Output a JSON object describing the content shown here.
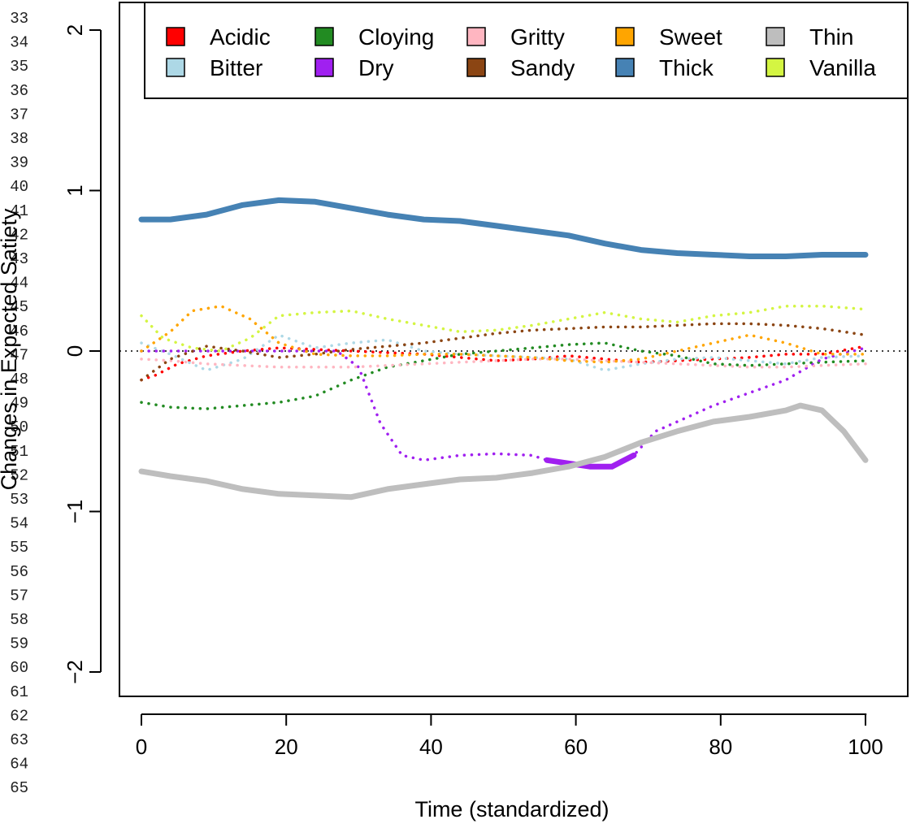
{
  "line_numbers": [
    "33",
    "34",
    "35",
    "36",
    "37",
    "38",
    "39",
    "40",
    "41",
    "42",
    "43",
    "44",
    "45",
    "46",
    "47",
    "48",
    "49",
    "50",
    "51",
    "52",
    "53",
    "54",
    "55",
    "56",
    "57",
    "58",
    "59",
    "60",
    "61",
    "62",
    "63",
    "64",
    "65"
  ],
  "chart_data": {
    "type": "line",
    "title": "",
    "xlabel": "Time (standardized)",
    "ylabel": "Changes in Expected Satiety",
    "xlim": [
      0,
      101
    ],
    "ylim": [
      -2.1,
      2.1
    ],
    "x_ticks": [
      "0",
      "20",
      "40",
      "60",
      "80",
      "100"
    ],
    "y_ticks": [
      "−2",
      "−1",
      "0",
      "1",
      "2"
    ],
    "reference_line": {
      "y": 0,
      "style": "dotted",
      "color": "#000000"
    },
    "legend": {
      "position": "top-right",
      "columns": 5
    },
    "series": [
      {
        "name": "Acidic",
        "color": "#ff0000",
        "style": "dotted",
        "x": [
          1,
          3,
          6,
          10,
          15,
          20,
          25,
          30,
          35,
          40,
          45,
          50,
          55,
          60,
          65,
          70,
          75,
          80,
          85,
          90,
          95,
          101
        ],
        "y": [
          -0.18,
          -0.15,
          -0.08,
          -0.03,
          0.0,
          0.02,
          0.01,
          0.0,
          -0.01,
          -0.02,
          -0.04,
          -0.06,
          -0.05,
          -0.03,
          -0.05,
          -0.07,
          -0.06,
          -0.05,
          -0.04,
          -0.02,
          -0.02,
          0.03
        ]
      },
      {
        "name": "Bitter",
        "color": "#add8e6",
        "style": "dotted",
        "x": [
          1,
          5,
          10,
          15,
          20,
          25,
          30,
          35,
          40,
          45,
          50,
          55,
          60,
          65,
          70,
          75,
          80,
          85,
          90,
          95,
          101
        ],
        "y": [
          0.05,
          -0.02,
          -0.12,
          -0.05,
          0.1,
          0.02,
          0.05,
          0.07,
          0.0,
          -0.02,
          -0.03,
          -0.04,
          -0.05,
          -0.12,
          -0.08,
          -0.05,
          -0.04,
          -0.06,
          -0.08,
          -0.04,
          -0.03
        ]
      },
      {
        "name": "Cloying",
        "color": "#228b22",
        "style": "dotted",
        "x": [
          1,
          5,
          10,
          15,
          20,
          25,
          30,
          35,
          40,
          45,
          50,
          55,
          60,
          65,
          70,
          75,
          80,
          85,
          90,
          95,
          101
        ],
        "y": [
          -0.32,
          -0.35,
          -0.36,
          -0.34,
          -0.32,
          -0.28,
          -0.18,
          -0.1,
          -0.06,
          -0.02,
          0.0,
          0.02,
          0.04,
          0.05,
          0.0,
          -0.03,
          -0.08,
          -0.09,
          -0.08,
          -0.07,
          -0.06
        ]
      },
      {
        "name": "Dry",
        "color": "#a020f0",
        "style": "dotted",
        "highlight": {
          "from": 57,
          "to": 69
        },
        "x": [
          1,
          10,
          20,
          28,
          31,
          34,
          37,
          40,
          45,
          50,
          55,
          57,
          60,
          63,
          66,
          69,
          72,
          76,
          80,
          85,
          90,
          95,
          101
        ],
        "y": [
          0.0,
          0.0,
          0.0,
          0.0,
          -0.1,
          -0.45,
          -0.65,
          -0.68,
          -0.65,
          -0.64,
          -0.65,
          -0.68,
          -0.7,
          -0.72,
          -0.72,
          -0.65,
          -0.5,
          -0.42,
          -0.34,
          -0.26,
          -0.18,
          -0.05,
          0.02
        ]
      },
      {
        "name": "Gritty",
        "color": "#ffb6c1",
        "style": "dotted",
        "x": [
          1,
          5,
          10,
          15,
          20,
          25,
          30,
          35,
          40,
          45,
          50,
          55,
          60,
          65,
          70,
          75,
          80,
          85,
          90,
          95,
          101
        ],
        "y": [
          -0.05,
          -0.06,
          -0.08,
          -0.09,
          -0.1,
          -0.1,
          -0.1,
          -0.09,
          -0.08,
          -0.07,
          -0.06,
          -0.05,
          -0.05,
          -0.06,
          -0.07,
          -0.08,
          -0.09,
          -0.1,
          -0.1,
          -0.09,
          -0.08
        ]
      },
      {
        "name": "Sandy",
        "color": "#8b4513",
        "style": "dotted",
        "x": [
          1,
          5,
          10,
          15,
          20,
          25,
          30,
          35,
          40,
          45,
          50,
          55,
          60,
          65,
          70,
          75,
          80,
          85,
          90,
          95,
          101
        ],
        "y": [
          -0.18,
          -0.05,
          0.03,
          0.0,
          -0.04,
          -0.02,
          0.01,
          0.03,
          0.05,
          0.08,
          0.11,
          0.13,
          0.14,
          0.15,
          0.15,
          0.16,
          0.17,
          0.17,
          0.16,
          0.14,
          0.1
        ]
      },
      {
        "name": "Sweet",
        "color": "#ffa500",
        "style": "dotted",
        "x": [
          1,
          5,
          8,
          12,
          16,
          20,
          25,
          30,
          35,
          40,
          45,
          50,
          55,
          60,
          65,
          70,
          75,
          80,
          85,
          90,
          95,
          101
        ],
        "y": [
          0.0,
          0.12,
          0.25,
          0.28,
          0.2,
          0.05,
          -0.02,
          -0.03,
          -0.03,
          -0.02,
          -0.02,
          -0.03,
          -0.04,
          -0.06,
          -0.07,
          -0.05,
          0.0,
          0.05,
          0.1,
          0.05,
          -0.02,
          -0.02
        ]
      },
      {
        "name": "Thick",
        "color": "#4682b4",
        "style": "solid",
        "x": [
          1,
          5,
          10,
          15,
          20,
          25,
          30,
          35,
          40,
          45,
          50,
          55,
          60,
          65,
          70,
          75,
          80,
          85,
          90,
          95,
          101
        ],
        "y": [
          0.82,
          0.82,
          0.85,
          0.91,
          0.94,
          0.93,
          0.89,
          0.85,
          0.82,
          0.81,
          0.78,
          0.75,
          0.72,
          0.67,
          0.63,
          0.61,
          0.6,
          0.59,
          0.59,
          0.6,
          0.6
        ]
      },
      {
        "name": "Thin",
        "color": "#bebebe",
        "style": "solid",
        "x": [
          1,
          5,
          10,
          15,
          20,
          25,
          30,
          35,
          40,
          45,
          50,
          55,
          60,
          65,
          70,
          75,
          80,
          85,
          90,
          92,
          95,
          98,
          101
        ],
        "y": [
          -0.75,
          -0.78,
          -0.81,
          -0.86,
          -0.89,
          -0.9,
          -0.91,
          -0.86,
          -0.83,
          -0.8,
          -0.79,
          -0.76,
          -0.72,
          -0.66,
          -0.57,
          -0.5,
          -0.44,
          -0.41,
          -0.37,
          -0.34,
          -0.37,
          -0.5,
          -0.68
        ]
      },
      {
        "name": "Vanilla",
        "color": "#d4f542",
        "style": "dotted",
        "x": [
          1,
          4,
          8,
          12,
          16,
          20,
          25,
          30,
          35,
          40,
          45,
          50,
          55,
          60,
          65,
          70,
          75,
          80,
          85,
          90,
          95,
          101
        ],
        "y": [
          0.22,
          0.08,
          0.02,
          0.0,
          0.08,
          0.22,
          0.24,
          0.25,
          0.2,
          0.16,
          0.12,
          0.13,
          0.16,
          0.2,
          0.24,
          0.2,
          0.18,
          0.22,
          0.24,
          0.28,
          0.28,
          0.26
        ]
      }
    ]
  }
}
